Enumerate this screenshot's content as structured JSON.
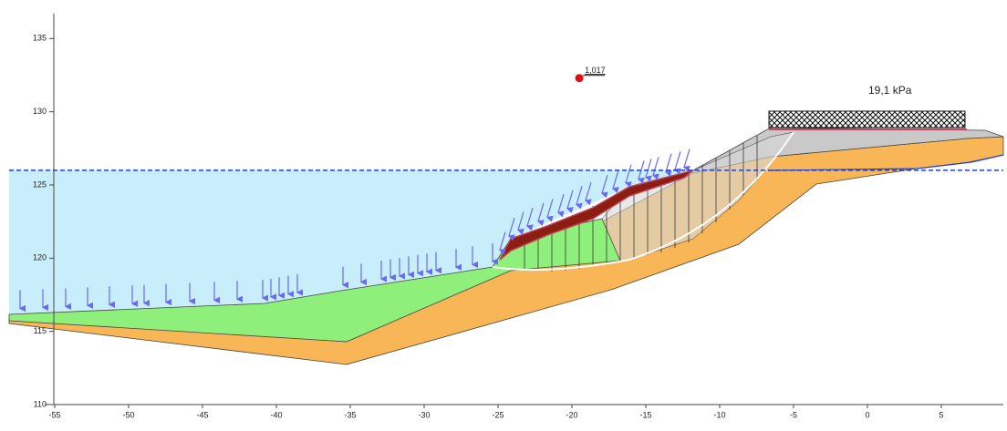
{
  "chart_data": {
    "type": "cross-section",
    "xlim": [
      -55.68,
      9.2
    ],
    "ylim": [
      110,
      136.7
    ],
    "xticks": [
      -55,
      -50,
      -45,
      -40,
      -35,
      -30,
      -25,
      -20,
      -15,
      -10,
      -5,
      0,
      5
    ],
    "yticks": [
      110,
      115,
      120,
      125,
      130,
      135
    ],
    "water_level": 126,
    "center": {
      "x": -19.5,
      "y": 132.3,
      "label": "1,017"
    },
    "load_label": "19,1 kPa"
  }
}
